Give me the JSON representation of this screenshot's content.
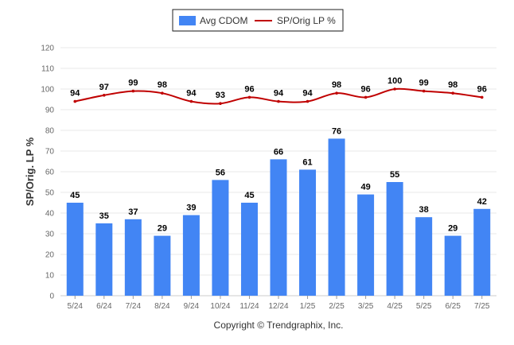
{
  "chart_data": {
    "type": "bar",
    "categories": [
      "5/24",
      "6/24",
      "7/24",
      "8/24",
      "9/24",
      "10/24",
      "11/24",
      "12/24",
      "1/25",
      "2/25",
      "3/25",
      "4/25",
      "5/25",
      "6/25",
      "7/25"
    ],
    "series": [
      {
        "name": "Avg CDOM",
        "type": "bar",
        "color": "#4285f4",
        "values": [
          45,
          35,
          37,
          29,
          39,
          56,
          45,
          66,
          61,
          76,
          49,
          55,
          38,
          29,
          42
        ]
      },
      {
        "name": "SP/Orig LP %",
        "type": "line",
        "color": "#c00000",
        "values": [
          94,
          97,
          99,
          98,
          94,
          93,
          96,
          94,
          94,
          98,
          96,
          100,
          99,
          98,
          96
        ]
      }
    ],
    "ylabel": "SP/Orig. LP %",
    "ylim": [
      0,
      120
    ],
    "yticks": [
      0,
      10,
      20,
      30,
      40,
      50,
      60,
      70,
      80,
      90,
      100,
      110,
      120
    ],
    "grid": true,
    "legend_position": "top-center"
  },
  "footer": "Copyright © Trendgraphix, Inc."
}
